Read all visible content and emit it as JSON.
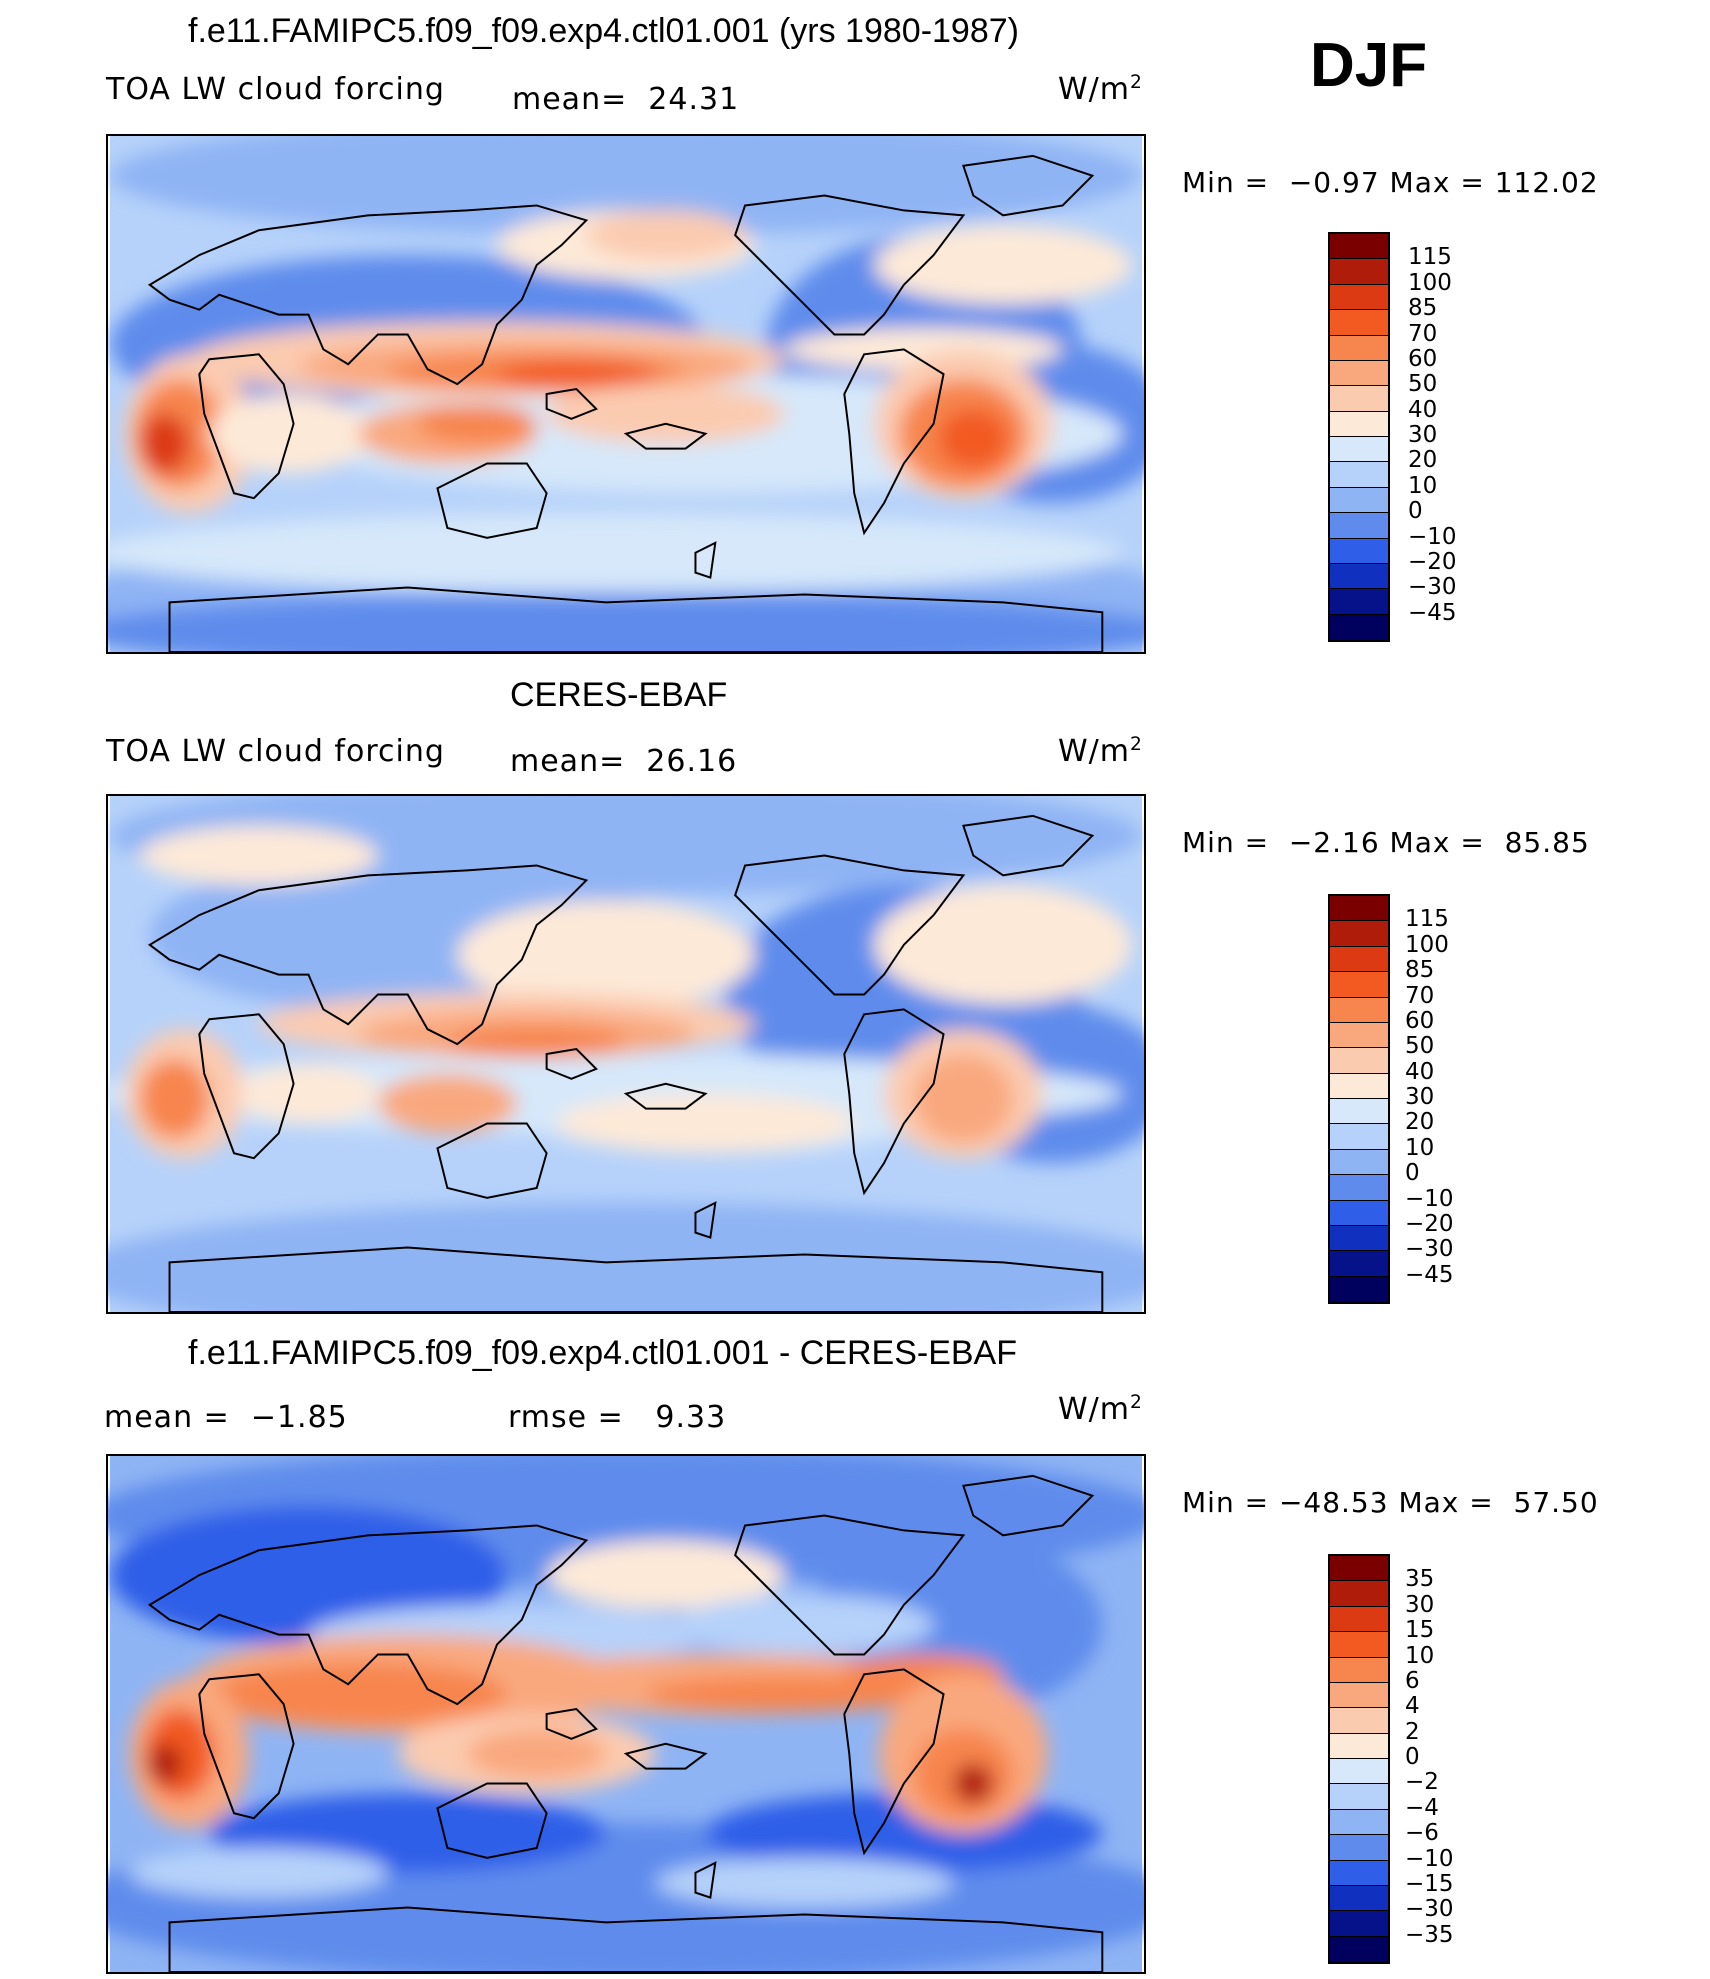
{
  "season": "DJF",
  "panels": [
    {
      "title": "f.e11.FAMIPC5.f09_f09.exp4.ctl01.001 (yrs 1980-1987)",
      "left_label": "TOA LW cloud forcing",
      "mid_label": "mean=  24.31",
      "units": "W/m",
      "units_sup": "2",
      "minmax": "Min =  −0.97 Max = 112.02",
      "legend": [
        "115",
        "100",
        "85",
        "70",
        "60",
        "50",
        "40",
        "30",
        "20",
        "10",
        "0",
        "−10",
        "−20",
        "−30",
        "−45"
      ]
    },
    {
      "title": "CERES-EBAF",
      "left_label": "TOA LW cloud forcing",
      "mid_label": "mean=  26.16",
      "units": "W/m",
      "units_sup": "2",
      "minmax": "Min =  −2.16 Max =  85.85",
      "legend": [
        "115",
        "100",
        "85",
        "70",
        "60",
        "50",
        "40",
        "30",
        "20",
        "10",
        "0",
        "−10",
        "−20",
        "−30",
        "−45"
      ]
    },
    {
      "title": "f.e11.FAMIPC5.f09_f09.exp4.ctl01.001 - CERES-EBAF",
      "left_label": "mean =  −1.85",
      "mid_label": "rmse =   9.33",
      "units": "W/m",
      "units_sup": "2",
      "minmax": "Min = −48.53 Max =  57.50",
      "legend": [
        "35",
        "30",
        "15",
        "10",
        "6",
        "4",
        "2",
        "0",
        "−2",
        "−4",
        "−6",
        "−10",
        "−15",
        "−30",
        "−35"
      ]
    }
  ],
  "colors": {
    "scale": [
      "#7a0000",
      "#b01c0a",
      "#dc3a12",
      "#f25a22",
      "#f7854e",
      "#f9a87e",
      "#fbcbb0",
      "#fde9d8",
      "#d6e8fa",
      "#b6d2fa",
      "#8fb4f4",
      "#5f8cec",
      "#2f5ee8",
      "#1030c0",
      "#06128a",
      "#00005e"
    ],
    "ocean": "#a9c8f7",
    "land_outline": "#000000"
  }
}
